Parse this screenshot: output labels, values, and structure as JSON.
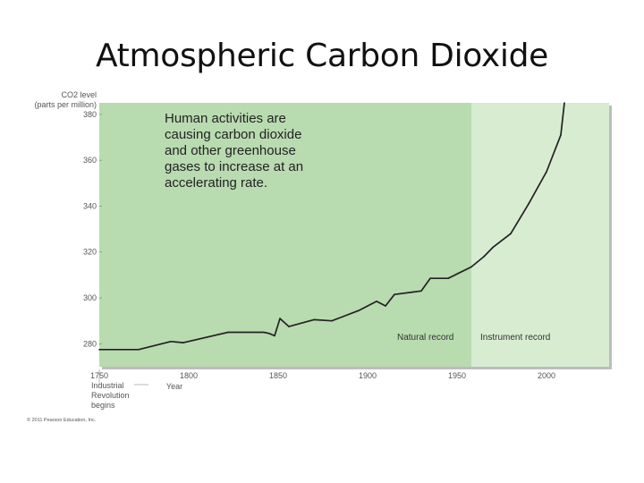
{
  "title": "Atmospheric Carbon Dioxide",
  "chart_data": {
    "type": "line",
    "ylabel_lines": [
      "CO2 level",
      "(parts per million)"
    ],
    "xlabel": "Year",
    "xlim": [
      1750,
      2035
    ],
    "ylim": [
      270,
      385
    ],
    "xticks": [
      1750,
      1800,
      1850,
      1900,
      1950,
      2000
    ],
    "yticks": [
      280,
      300,
      320,
      340,
      360,
      380
    ],
    "series": [
      {
        "x": [
          1750,
          1772,
          1790,
          1797,
          1822,
          1842,
          1845,
          1848,
          1851,
          1856,
          1870,
          1880,
          1895,
          1905,
          1910,
          1915,
          1925,
          1930,
          1935,
          1945,
          1958,
          1965,
          1970,
          1980,
          1990,
          2000,
          2005,
          2008,
          2010
        ],
        "y": [
          277.5,
          277.5,
          281,
          280.5,
          285,
          285,
          284.5,
          283.5,
          291,
          287.5,
          290.5,
          290,
          294.5,
          298.5,
          296.5,
          301.5,
          302.5,
          303,
          308.5,
          308.5,
          313.5,
          318,
          322,
          328,
          341,
          355,
          365,
          371,
          385
        ]
      }
    ],
    "regions": [
      {
        "label": "Natural record",
        "x_from": 1750,
        "x_to": 1958,
        "color": "#b9dbb0"
      },
      {
        "label": "Instrument record",
        "x_from": 1958,
        "x_to": 2035,
        "color": "#d8ecd2"
      }
    ],
    "annotations": [
      {
        "text_lines": [
          "Human activities are",
          "causing carbon dioxide",
          "and other greenhouse",
          "gases to increase at an",
          "accelerating rate."
        ]
      },
      {
        "text_lines": [
          "Industrial",
          "Revolution",
          "begins"
        ],
        "x": 1750
      }
    ],
    "copyright": "© 2011 Pearson Education, Inc.",
    "line_color": "#222222"
  }
}
